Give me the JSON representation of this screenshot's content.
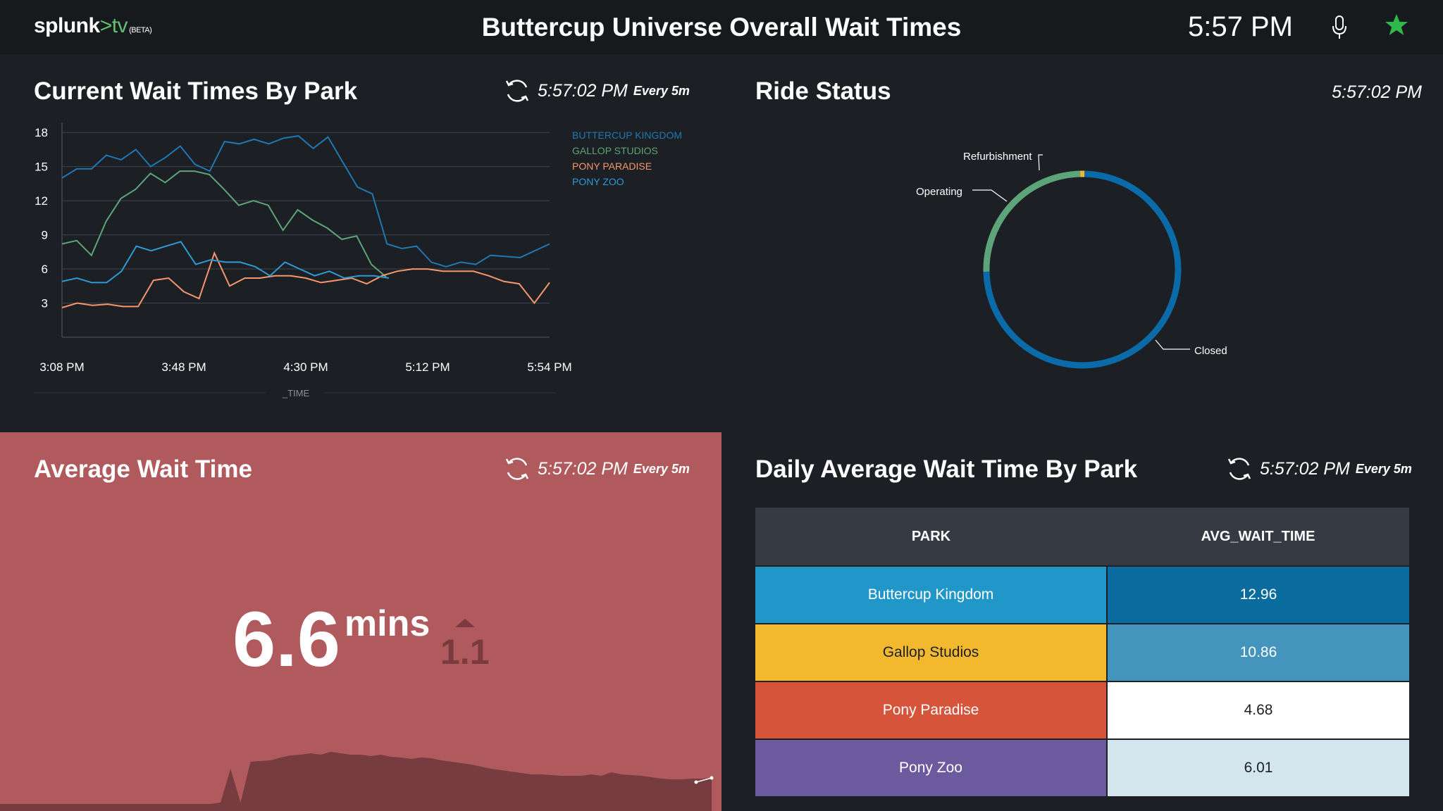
{
  "header": {
    "logo_main": "splunk",
    "logo_arrow": ">",
    "logo_tv": "tv",
    "logo_beta": "(BETA)",
    "title": "Buttercup Universe Overall Wait Times",
    "clock": "5:57 PM",
    "icons": [
      "microphone-icon",
      "star-icon"
    ],
    "star_color": "#2fb84a"
  },
  "panels": {
    "wait_by_park": {
      "title": "Current Wait Times By Park",
      "refresh_time": "5:57:02 PM",
      "refresh_every": "Every 5m",
      "x_axis_label": "_TIME"
    },
    "ride_status": {
      "title": "Ride Status",
      "refresh_time": "5:57:02 PM"
    },
    "avg_wait": {
      "title": "Average Wait Time",
      "refresh_time": "5:57:02 PM",
      "refresh_every": "Every 5m",
      "value": "6.6",
      "unit": "mins",
      "delta": "1.1",
      "trend": "up"
    },
    "daily_avg": {
      "title": "Daily Average Wait Time By Park",
      "refresh_time": "5:57:02 PM",
      "refresh_every": "Every 5m",
      "columns": [
        "PARK",
        "AVG_WAIT_TIME"
      ],
      "rows": [
        {
          "park": "Buttercup Kingdom",
          "avg": "12.96",
          "park_bg": "#2196c9",
          "park_fg": "#ffffff",
          "avg_bg": "#0a6c9e",
          "avg_fg": "#ffffff"
        },
        {
          "park": "Gallop Studios",
          "avg": "10.86",
          "park_bg": "#f2b92e",
          "park_fg": "#1c1f23",
          "avg_bg": "#4494bd",
          "avg_fg": "#ffffff"
        },
        {
          "park": "Pony Paradise",
          "avg": "4.68",
          "park_bg": "#d6553a",
          "park_fg": "#ffffff",
          "avg_bg": "#ffffff",
          "avg_fg": "#1c1f23"
        },
        {
          "park": "Pony Zoo",
          "avg": "6.01",
          "park_bg": "#6c5a9e",
          "park_fg": "#ffffff",
          "avg_bg": "#d3e6ee",
          "avg_fg": "#1c1f23"
        }
      ]
    }
  },
  "chart_data": [
    {
      "type": "line",
      "x_ticks": [
        "3:08 PM",
        "3:48 PM",
        "4:30 PM",
        "5:12 PM",
        "5:54 PM"
      ],
      "xlabel": "_TIME",
      "ylim": [
        0,
        19
      ],
      "y_ticks": [
        3,
        6,
        9,
        12,
        15,
        18
      ],
      "grid": true,
      "legend_position": "top-right",
      "series": [
        {
          "name": "BUTTERCUP KINGDOM",
          "color": "#1f78b4",
          "values": [
            14.0,
            14.8,
            14.8,
            16.0,
            15.6,
            16.5,
            15.0,
            15.8,
            16.8,
            15.2,
            14.6,
            17.2,
            17.0,
            17.4,
            17.0,
            17.5,
            17.7,
            16.6,
            17.6,
            15.4,
            13.2,
            12.6,
            8.2,
            7.8,
            8.0,
            6.6,
            6.2,
            6.6,
            6.4,
            7.2,
            7.1,
            7.0,
            7.6,
            8.2
          ]
        },
        {
          "name": "GALLOP STUDIOS",
          "color": "#5ea47a",
          "values": [
            8.2,
            8.5,
            7.2,
            10.2,
            12.2,
            13.0,
            14.4,
            13.6,
            14.6,
            14.6,
            14.3,
            13.0,
            11.6,
            12.0,
            11.6,
            9.4,
            11.2,
            10.3,
            9.6,
            8.6,
            8.9,
            6.4,
            5.3
          ]
        },
        {
          "name": "PONY PARADISE",
          "color": "#f4976c",
          "values": [
            2.6,
            3.0,
            2.8,
            2.9,
            2.7,
            2.7,
            5.0,
            5.2,
            4.0,
            3.4,
            7.4,
            4.5,
            5.2,
            5.2,
            5.4,
            5.4,
            5.2,
            4.8,
            5.0,
            5.2,
            4.7,
            5.4,
            5.8,
            6.0,
            6.0,
            5.8,
            5.8,
            5.8,
            5.4,
            4.9,
            4.7,
            3.0,
            4.8
          ]
        },
        {
          "name": "PONY ZOO",
          "color": "#2d9ad6",
          "values": [
            4.9,
            5.2,
            4.8,
            4.8,
            5.8,
            8.0,
            7.6,
            8.0,
            8.4,
            6.4,
            6.8,
            6.6,
            6.6,
            6.2,
            5.4,
            6.6,
            6.0,
            5.4,
            5.8,
            5.2,
            5.4,
            5.4,
            5.2
          ]
        }
      ]
    },
    {
      "type": "pie",
      "style": "donut",
      "categories": [
        "Closed",
        "Operating",
        "Refurbishment"
      ],
      "values": [
        74.3,
        25.0,
        0.7
      ],
      "colors": [
        "#0b6aa8",
        "#5ea47a",
        "#f2b92e"
      ]
    },
    {
      "type": "area",
      "color": "#763c3f",
      "values": [
        0.0,
        0.0,
        0.0,
        0.0,
        0.0,
        0.0,
        0.0,
        0.0,
        0.0,
        0.0,
        0.0,
        0.0,
        0.0,
        0.0,
        0.0,
        0.0,
        0.0,
        0.0,
        0.0,
        0.0,
        0.0,
        0.0,
        0.2,
        5.0,
        0.2,
        6.0,
        6.1,
        6.2,
        6.6,
        6.9,
        7.0,
        7.2,
        7.0,
        7.4,
        7.2,
        7.0,
        7.0,
        6.8,
        7.0,
        6.7,
        6.6,
        6.4,
        6.6,
        6.5,
        6.2,
        6.0,
        5.8,
        5.6,
        5.3,
        5.0,
        4.8,
        4.6,
        4.4,
        4.2,
        4.2,
        4.1,
        4.0,
        4.0,
        4.0,
        4.2,
        4.0,
        4.5,
        4.2,
        4.1,
        4.0,
        3.8,
        3.6,
        3.5,
        3.5,
        3.6,
        3.6,
        3.7
      ]
    }
  ]
}
